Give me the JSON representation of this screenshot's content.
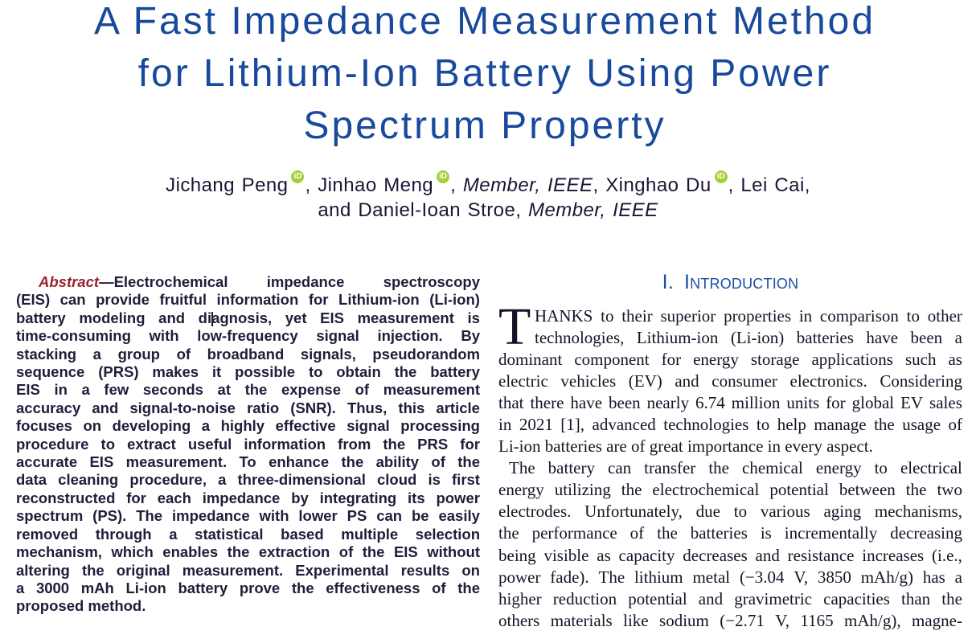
{
  "title": {
    "color": "#18499b",
    "lines": [
      "A Fast Impedance Measurement Method",
      "for Lithium-Ion Battery Using Power",
      "Spectrum Property"
    ]
  },
  "authors": {
    "color": "#1e1433",
    "orcid": {
      "label": "iD",
      "color": "#a6ce39"
    },
    "line1": [
      {
        "t": "Jichang Peng"
      },
      {
        "icon": "orcid"
      },
      {
        "t": ", Jinhao Meng"
      },
      {
        "icon": "orcid"
      },
      {
        "t": ", "
      },
      {
        "t": "Member, IEEE",
        "italic": true
      },
      {
        "t": ", Xinghao Du"
      },
      {
        "icon": "orcid"
      },
      {
        "t": ", Lei Cai,"
      }
    ],
    "line2": [
      {
        "t": "and Daniel-Ioan Stroe, "
      },
      {
        "t": "Member, IEEE",
        "italic": true
      }
    ]
  },
  "abstract": {
    "label": "Abstract",
    "label_color": "#9a2430",
    "text_color": "#221c3a",
    "lines": [
      "Abstract—Electrochemical impedance spectroscopy",
      "(EIS) can provide fruitful information for Lithium-ion (Li-ion)",
      "battery modeling and diagnosis, yet EIS measurement is",
      "time-consuming with low-frequency signal injection. By",
      "stacking a group of broadband signals, pseudorandom",
      "sequence (PRS) makes it possible to obtain the battery",
      "EIS in a few seconds at the expense of measurement",
      "accuracy and signal-to-noise ratio (SNR). Thus, this article",
      "focuses on developing a highly effective signal processing",
      "procedure to extract useful information from the PRS for",
      "accurate EIS measurement. To enhance the ability of the",
      "data cleaning procedure, a three-dimensional cloud is first",
      "reconstructed for each impedance by integrating its power",
      "spectrum (PS). The impedance with lower PS can be easily",
      "removed through a statistical based multiple selection",
      "mechanism, which enables the extraction of the EIS without",
      "altering the original measurement. Experimental results on",
      "a 3000 mAh Li-ion battery prove the effectiveness of the",
      "proposed method."
    ]
  },
  "introduction": {
    "heading": {
      "number": "I.",
      "text": "Introduction",
      "color": "#1b4fa3"
    },
    "text_color": "#191226",
    "paragraphs": [
      {
        "dropcap": "T",
        "last_justified": false,
        "lines": [
          "HANKS to their superior properties in comparison to other",
          "technologies, Lithium-ion (Li-ion) batteries have been a",
          "dominant component for energy storage applications such as",
          "electric vehicles (EV) and consumer electronics. Considering",
          "that there have been nearly 6.74 million units for global EV sales",
          "in 2021 [1], advanced technologies to help manage the usage of",
          "Li-ion batteries are of great importance in every aspect."
        ]
      },
      {
        "indent": true,
        "last_justified": true,
        "lines": [
          "The battery can transfer the chemical energy to electrical",
          "energy utilizing the electrochemical potential between the two",
          "electrodes. Unfortunately, due to various aging mechanisms,",
          "the performance of the batteries is incrementally decreasing",
          "being visible as capacity decreases and resistance increases (i.e.,",
          "power fade). The lithium metal (−3.04 V, 3850 mAh/g) has a",
          "higher reduction potential and gravimetric capacities than the",
          "others materials like sodium (−2.71 V, 1165 mAh/g), magne-"
        ]
      }
    ]
  },
  "caret": {
    "visible": true
  }
}
